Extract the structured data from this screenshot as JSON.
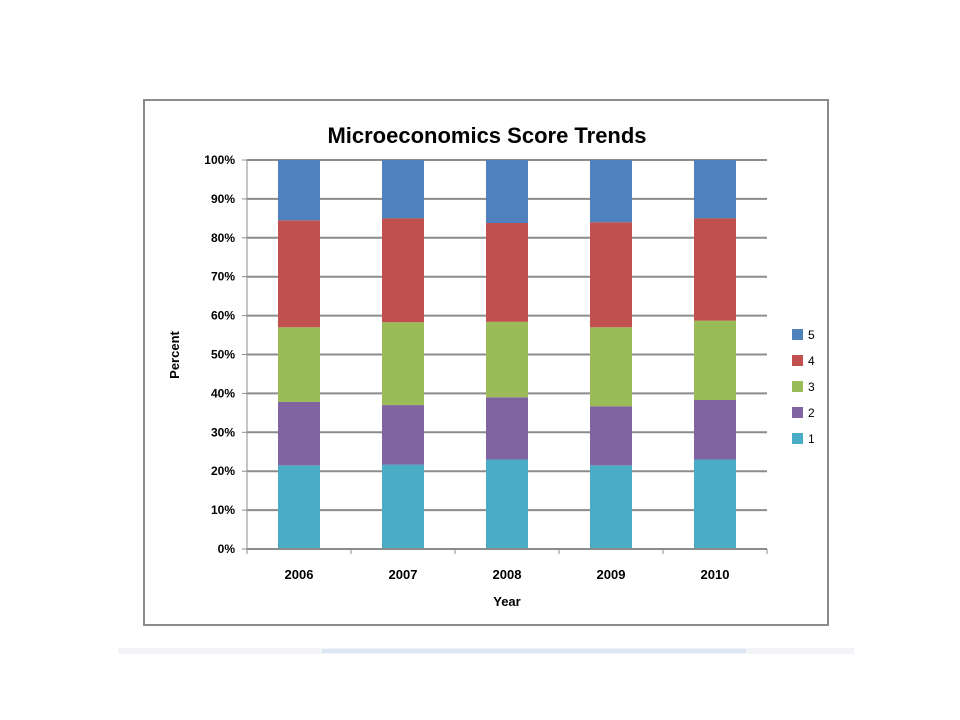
{
  "chart_data": {
    "type": "bar",
    "stacked": true,
    "title": "Microeconomics Score Trends",
    "xlabel": "Year",
    "ylabel": "Percent",
    "categories": [
      "2006",
      "2007",
      "2008",
      "2009",
      "2010"
    ],
    "ylim": [
      0,
      100
    ],
    "yticks": [
      "0%",
      "10%",
      "20%",
      "30%",
      "40%",
      "50%",
      "60%",
      "70%",
      "80%",
      "90%",
      "100%"
    ],
    "grid": true,
    "legend_position": "right",
    "series": [
      {
        "name": "1",
        "color": "#4bacc6",
        "values": [
          21.5,
          21.7,
          23.0,
          21.5,
          23.0
        ]
      },
      {
        "name": "2",
        "color": "#8064a2",
        "values": [
          16.3,
          15.3,
          16.0,
          15.2,
          15.3
        ]
      },
      {
        "name": "3",
        "color": "#9bbb59",
        "values": [
          19.2,
          21.3,
          19.4,
          20.3,
          20.4
        ]
      },
      {
        "name": "4",
        "color": "#c0504d",
        "values": [
          27.5,
          26.7,
          25.4,
          27.0,
          26.3
        ]
      },
      {
        "name": "5",
        "color": "#4f81bd",
        "values": [
          15.5,
          15.0,
          16.2,
          16.0,
          15.0
        ]
      }
    ]
  }
}
